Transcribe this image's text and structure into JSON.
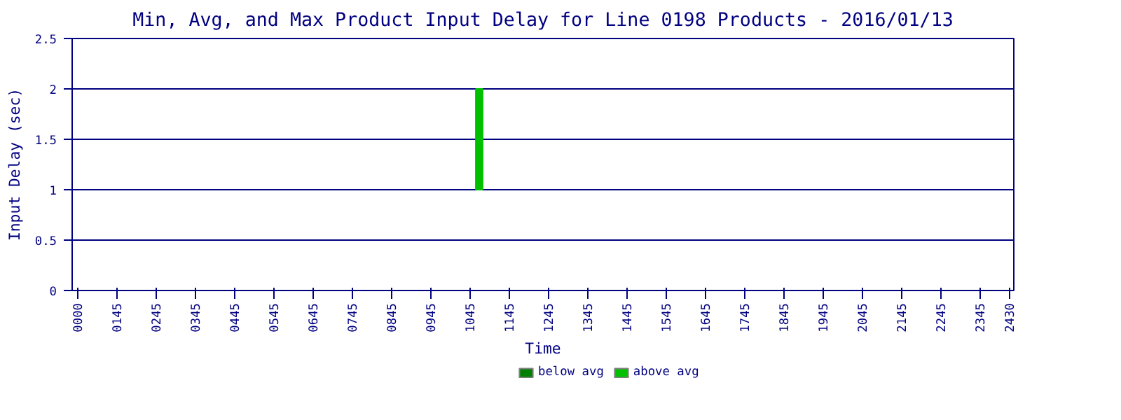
{
  "chart_data": {
    "type": "bar",
    "title": "Min, Avg, and Max Product Input Delay for Line 0198 Products - 2016/01/13",
    "xlabel": "Time",
    "ylabel": "Input Delay (sec)",
    "categories": [
      "0000",
      null,
      null,
      null,
      "0145",
      null,
      null,
      null,
      "0245",
      null,
      null,
      null,
      "0345",
      null,
      null,
      null,
      "0445",
      null,
      null,
      null,
      "0545",
      null,
      null,
      null,
      "0645",
      null,
      null,
      null,
      "0745",
      null,
      null,
      null,
      "0845",
      null,
      null,
      null,
      "0945",
      null,
      null,
      null,
      "1045",
      null,
      null,
      null,
      "1145",
      null,
      null,
      null,
      "1245",
      null,
      null,
      null,
      "1345",
      null,
      null,
      null,
      "1445",
      null,
      null,
      null,
      "1545",
      null,
      null,
      null,
      "1645",
      null,
      null,
      null,
      "1745",
      null,
      null,
      null,
      "1845",
      null,
      null,
      null,
      "1945",
      null,
      null,
      null,
      "2045",
      null,
      null,
      null,
      "2145",
      null,
      null,
      null,
      "2245",
      null,
      null,
      null,
      "2345",
      null,
      null,
      "2430"
    ],
    "series": [
      {
        "name": "below avg",
        "color": "#008000",
        "base": [
          null,
          null,
          null,
          null,
          null,
          null,
          null,
          null,
          null,
          null,
          null,
          null,
          null,
          null,
          null,
          null,
          null,
          null,
          null,
          null,
          null,
          null,
          null,
          null,
          null,
          null,
          null,
          null,
          null,
          null,
          null,
          null,
          null,
          null,
          null,
          null,
          null,
          null,
          null,
          null,
          null,
          1,
          null,
          null,
          null,
          null,
          null,
          null,
          null,
          null,
          null,
          null,
          null,
          null,
          null,
          null,
          null,
          null,
          null,
          null,
          null,
          null,
          null,
          null,
          null,
          null,
          null,
          null,
          null,
          null,
          null,
          null,
          null,
          null,
          null,
          null,
          null,
          null,
          null,
          null,
          null,
          null,
          null,
          null,
          null,
          null,
          null,
          null,
          null,
          null,
          null,
          null,
          null,
          null,
          null,
          null
        ],
        "values": [
          null,
          null,
          null,
          null,
          null,
          null,
          null,
          null,
          null,
          null,
          null,
          null,
          null,
          null,
          null,
          null,
          null,
          null,
          null,
          null,
          null,
          null,
          null,
          null,
          null,
          null,
          null,
          null,
          null,
          null,
          null,
          null,
          null,
          null,
          null,
          null,
          null,
          null,
          null,
          null,
          null,
          0,
          null,
          null,
          null,
          null,
          null,
          null,
          null,
          null,
          null,
          null,
          null,
          null,
          null,
          null,
          null,
          null,
          null,
          null,
          null,
          null,
          null,
          null,
          null,
          null,
          null,
          null,
          null,
          null,
          null,
          null,
          null,
          null,
          null,
          null,
          null,
          null,
          null,
          null,
          null,
          null,
          null,
          null,
          null,
          null,
          null,
          null,
          null,
          null,
          null,
          null,
          null,
          null,
          null,
          null
        ]
      },
      {
        "name": "above avg",
        "color": "#00c000",
        "base": [
          null,
          null,
          null,
          null,
          null,
          null,
          null,
          null,
          null,
          null,
          null,
          null,
          null,
          null,
          null,
          null,
          null,
          null,
          null,
          null,
          null,
          null,
          null,
          null,
          null,
          null,
          null,
          null,
          null,
          null,
          null,
          null,
          null,
          null,
          null,
          null,
          null,
          null,
          null,
          null,
          null,
          1,
          null,
          null,
          null,
          null,
          null,
          null,
          null,
          null,
          null,
          null,
          null,
          null,
          null,
          null,
          null,
          null,
          null,
          null,
          null,
          null,
          null,
          null,
          null,
          null,
          null,
          null,
          null,
          null,
          null,
          null,
          null,
          null,
          null,
          null,
          null,
          null,
          null,
          null,
          null,
          null,
          null,
          null,
          null,
          null,
          null,
          null,
          null,
          null,
          null,
          null,
          null,
          null,
          null,
          null
        ],
        "values": [
          null,
          null,
          null,
          null,
          null,
          null,
          null,
          null,
          null,
          null,
          null,
          null,
          null,
          null,
          null,
          null,
          null,
          null,
          null,
          null,
          null,
          null,
          null,
          null,
          null,
          null,
          null,
          null,
          null,
          null,
          null,
          null,
          null,
          null,
          null,
          null,
          null,
          null,
          null,
          null,
          null,
          1,
          null,
          null,
          null,
          null,
          null,
          null,
          null,
          null,
          null,
          null,
          null,
          null,
          null,
          null,
          null,
          null,
          null,
          null,
          null,
          null,
          null,
          null,
          null,
          null,
          null,
          null,
          null,
          null,
          null,
          null,
          null,
          null,
          null,
          null,
          null,
          null,
          null,
          null,
          null,
          null,
          null,
          null,
          null,
          null,
          null,
          null,
          null,
          null,
          null,
          null,
          null,
          null,
          null,
          null
        ]
      }
    ],
    "ylim": [
      0,
      2.5
    ],
    "yticks": [
      0,
      0.5,
      1,
      1.5,
      2,
      2.5
    ],
    "grid": "y",
    "legend": "bottom"
  }
}
